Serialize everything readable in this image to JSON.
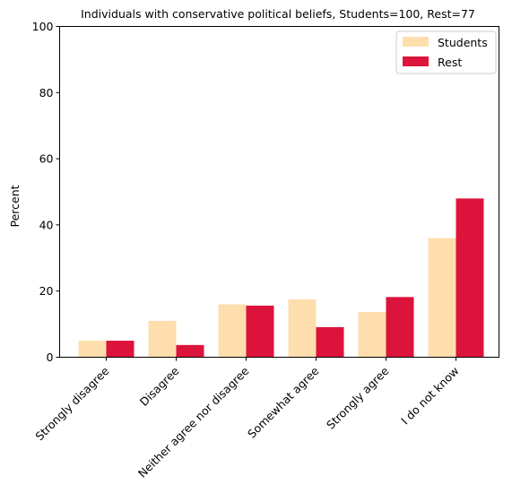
{
  "chart_data": {
    "type": "bar",
    "title": "Individuals with conservative political beliefs, Students=100, Rest=77",
    "xlabel": "",
    "ylabel": "Percent",
    "ylim": [
      0,
      100
    ],
    "yticks": [
      0,
      20,
      40,
      60,
      80,
      100
    ],
    "categories": [
      "Strongly disagree",
      "Disagree",
      "Neither agree nor disagree",
      "Somewhat agree",
      "Strongly agree",
      "I do not know"
    ],
    "series": [
      {
        "name": "Students",
        "color": "#ffdead",
        "values": [
          5,
          11,
          16,
          17.5,
          13.7,
          36
        ]
      },
      {
        "name": "Rest",
        "color": "#dc143c",
        "values": [
          5,
          3.7,
          15.6,
          9.1,
          18.2,
          48
        ]
      }
    ],
    "legend_position": "top-right",
    "grid": false
  }
}
